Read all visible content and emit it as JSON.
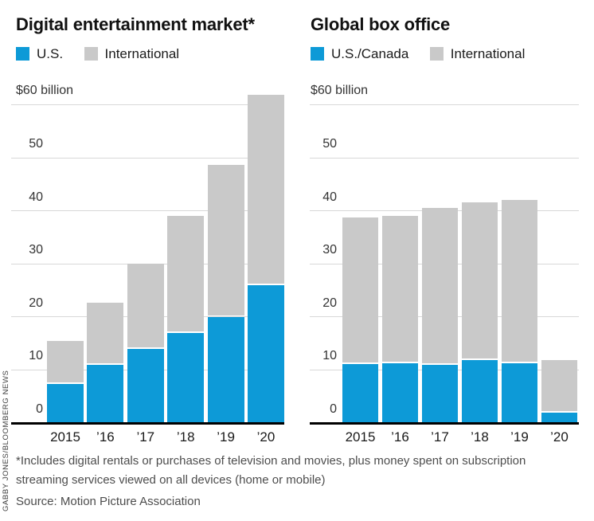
{
  "credit": "GABBY JONES/BLOOMBERG NEWS",
  "colors": {
    "us_blue": "#0d9ad7",
    "international_gray": "#c9c9c9",
    "gridline": "#d8d8d8",
    "axis_black": "#000000"
  },
  "footer": {
    "footnote_lines": [
      "*Includes digital rentals or purchases of television and movies, plus money spent on subscription",
      "streaming services viewed on all devices (home or mobile)"
    ],
    "source": "Source: Motion Picture Association"
  },
  "chart_data": [
    {
      "type": "bar",
      "stacked": true,
      "title": "Digital entertainment market*",
      "unit_label": "$60 billion",
      "legend_position": "top",
      "grid": true,
      "ylim": [
        0,
        62
      ],
      "yticks": [
        0,
        10,
        20,
        30,
        40,
        50,
        60
      ],
      "categories": [
        "2015",
        "’16",
        "’17",
        "’18",
        "’19",
        "’20"
      ],
      "series": [
        {
          "name": "U.S.",
          "color": "#0d9ad7",
          "values": [
            7.4,
            11.0,
            14.0,
            17.0,
            20.0,
            26.0
          ]
        },
        {
          "name": "International",
          "color": "#c9c9c9",
          "values": [
            8.0,
            11.6,
            16.0,
            22.0,
            28.6,
            35.8
          ]
        }
      ],
      "totals": [
        15.4,
        22.6,
        30.0,
        39.0,
        48.6,
        61.8
      ]
    },
    {
      "type": "bar",
      "stacked": true,
      "title": "Global box office",
      "unit_label": "$60 billion",
      "legend_position": "top",
      "grid": true,
      "ylim": [
        0,
        62
      ],
      "yticks": [
        0,
        10,
        20,
        30,
        40,
        50,
        60
      ],
      "categories": [
        "2015",
        "’16",
        "’17",
        "’18",
        "’19",
        "’20"
      ],
      "series": [
        {
          "name": "U.S./Canada",
          "color": "#0d9ad7",
          "values": [
            11.1,
            11.3,
            11.0,
            11.8,
            11.3,
            2.0
          ]
        },
        {
          "name": "International",
          "color": "#c9c9c9",
          "values": [
            27.7,
            27.7,
            29.5,
            29.8,
            30.7,
            9.8
          ]
        }
      ],
      "totals": [
        38.8,
        39.0,
        40.5,
        41.6,
        42.0,
        11.8
      ]
    }
  ]
}
